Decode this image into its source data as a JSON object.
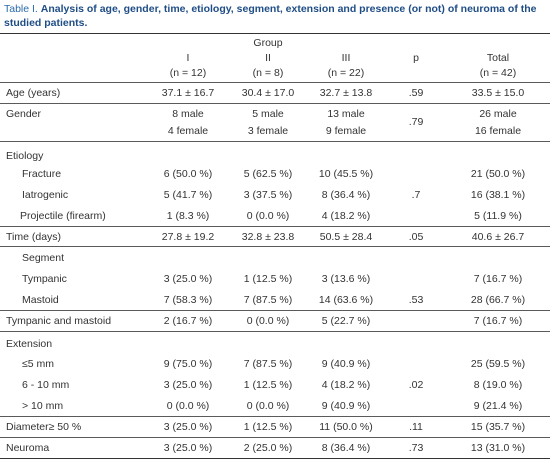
{
  "caption": {
    "label": "Table I.",
    "text": "Analysis of age, gender, time, etiology, segment, extension and presence (or not) of neuroma of the studied patients."
  },
  "header": {
    "group": "Group",
    "col1": "I",
    "col2": "II",
    "col3": "III",
    "p": "p",
    "total": "Total",
    "n1": "(n = 12)",
    "n2": "(n = 8)",
    "n3": "(n = 22)",
    "nt": "(n = 42)"
  },
  "rows": {
    "age": {
      "label": "Age (years)",
      "c1": "37.1 ± 16.7",
      "c2": "30.4 ± 17.0",
      "c3": "32.7 ± 13.8",
      "p": ".59",
      "t": "33.5 ± 15.0"
    },
    "gender": {
      "label": "Gender",
      "c1a": "8 male",
      "c2a": "5 male",
      "c3a": "13 male",
      "ta": "26 male",
      "c1b": "4 female",
      "c2b": "3 female",
      "c3b": "9 female",
      "tb": "16 female",
      "p": ".79"
    },
    "etiology": {
      "label": "Etiology"
    },
    "fracture": {
      "label": "Fracture",
      "c1": "6 (50.0 %)",
      "c2": "5 (62.5 %)",
      "c3": "10 (45.5 %)",
      "t": "21 (50.0 %)"
    },
    "iatrogenic": {
      "label": "Iatrogenic",
      "c1": "5 (41.7 %)",
      "c2": "3 (37.5 %)",
      "c3": "8 (36.4 %)",
      "p": ".7",
      "t": "16 (38.1 %)"
    },
    "projectile": {
      "label": "Projectile (firearm)",
      "c1": "1 (8.3 %)",
      "c2": "0 (0.0 %)",
      "c3": "4 (18.2 %)",
      "t": "5 (11.9 %)"
    },
    "time": {
      "label": "Time (days)",
      "c1": "27.8 ± 19.2",
      "c2": "32.8 ± 23.8",
      "c3": "50.5 ± 28.4",
      "p": ".05",
      "t": "40.6 ± 26.7"
    },
    "segment": {
      "label": "Segment"
    },
    "tympanic": {
      "label": "Tympanic",
      "c1": "3 (25.0 %)",
      "c2": "1 (12.5 %)",
      "c3": "3 (13.6 %)",
      "t": "7 (16.7 %)"
    },
    "mastoid": {
      "label": "Mastoid",
      "c1": "7 (58.3 %)",
      "c2": "7 (87.5 %)",
      "c3": "14 (63.6 %)",
      "p": ".53",
      "t": "28 (66.7 %)"
    },
    "tympmast": {
      "label": "Tympanic and mastoid",
      "c1": "2 (16.7 %)",
      "c2": "0 (0.0 %)",
      "c3": "5 (22.7 %)",
      "t": "7 (16.7 %)"
    },
    "extension": {
      "label": "Extension"
    },
    "ext5": {
      "label": "≤5 mm",
      "c1": "9 (75.0 %)",
      "c2": "7 (87.5 %)",
      "c3": "9 (40.9 %)",
      "t": "25 (59.5 %)"
    },
    "ext610": {
      "label": "6 - 10 mm",
      "c1": "3 (25.0 %)",
      "c2": "1 (12.5 %)",
      "c3": "4 (18.2 %)",
      "p": ".02",
      "t": "8 (19.0 %)"
    },
    "ext10": {
      "label": "> 10 mm",
      "c1": "0 (0.0 %)",
      "c2": "0 (0.0 %)",
      "c3": "9 (40.9 %)",
      "t": "9 (21.4 %)"
    },
    "diameter": {
      "label": "Diameter≥ 50 %",
      "c1": "3 (25.0 %)",
      "c2": "1 (12.5 %)",
      "c3": "11 (50.0 %)",
      "p": ".11",
      "t": "15 (35.7 %)"
    },
    "neuroma": {
      "label": "Neuroma",
      "c1": "3 (25.0 %)",
      "c2": "2 (25.0 %)",
      "c3": "8 (36.4 %)",
      "p": ".73",
      "t": "13 (31.0 %)"
    }
  }
}
